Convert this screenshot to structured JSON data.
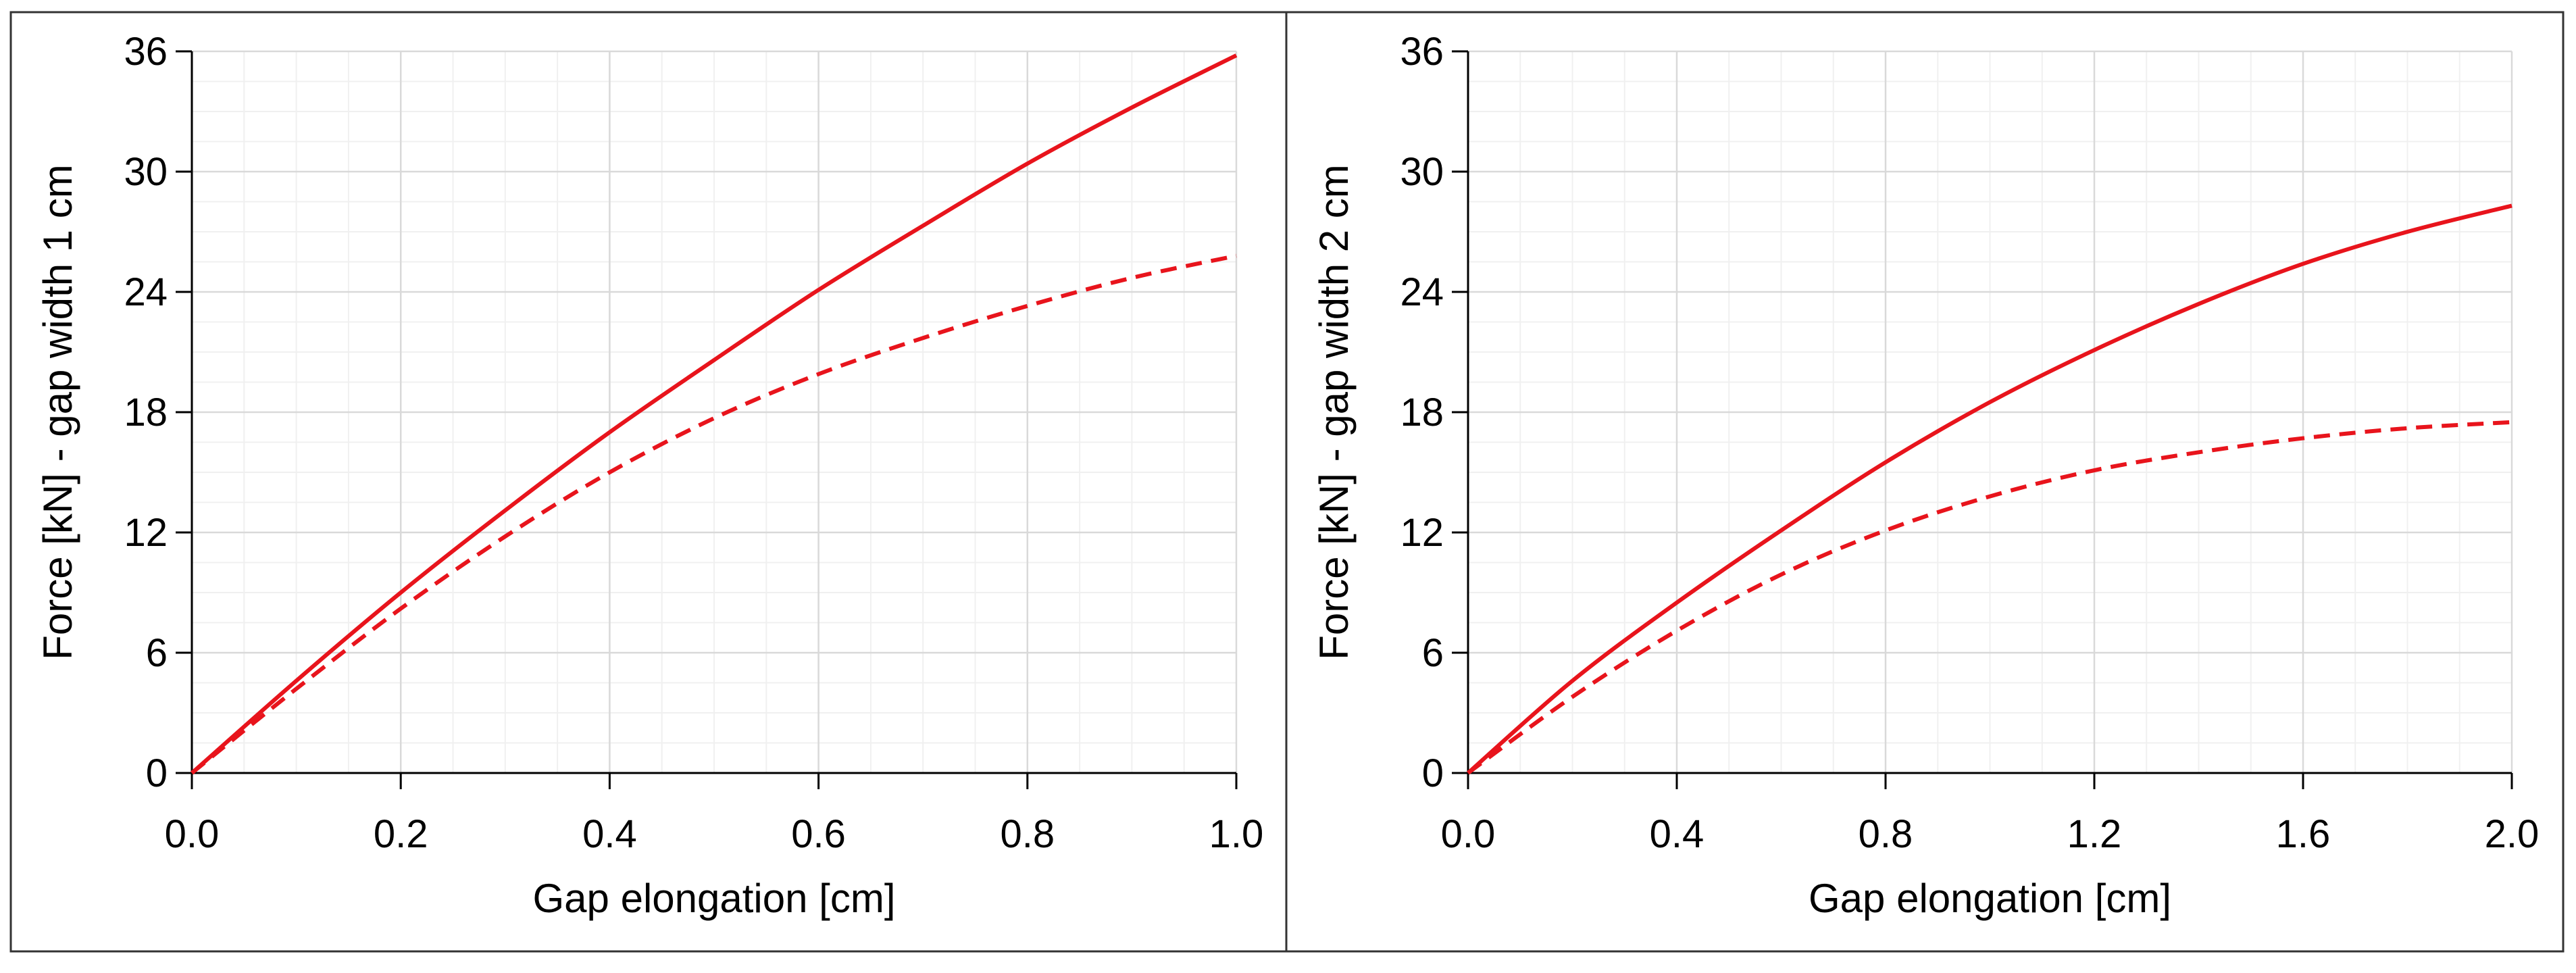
{
  "figure": {
    "panel_count": 2,
    "colors": {
      "series": "#e8141c",
      "major_grid": "#d9d9d9",
      "minor_grid": "#f0f0f0",
      "axis": "#000000",
      "border": "#333333"
    }
  },
  "chart_data": [
    {
      "type": "line",
      "title": "",
      "xlabel": "Gap elongation [cm]",
      "ylabel": "Force [kN] - gap width 1 cm",
      "xlim": [
        0,
        1.0
      ],
      "ylim": [
        0,
        36
      ],
      "xticks": [
        0,
        0.2,
        0.4,
        0.6,
        0.8,
        1.0
      ],
      "xtick_labels": [
        "0.0",
        "0.2",
        "0.4",
        "0.6",
        "0.8",
        "1.0"
      ],
      "yticks": [
        0,
        6,
        12,
        18,
        24,
        30,
        36
      ],
      "ytick_labels": [
        "0",
        "6",
        "12",
        "18",
        "24",
        "30",
        "36"
      ],
      "grid": true,
      "x": [
        0,
        0.1,
        0.2,
        0.3,
        0.4,
        0.5,
        0.6,
        0.7,
        0.8,
        0.9,
        1.0
      ],
      "series": [
        {
          "name": "solid",
          "style": "solid",
          "values": [
            0,
            4.6,
            9.0,
            13.1,
            17.0,
            20.6,
            24.1,
            27.3,
            30.4,
            33.2,
            35.8
          ]
        },
        {
          "name": "dashed",
          "style": "dashed",
          "values": [
            0,
            4.2,
            8.2,
            11.8,
            15.0,
            17.7,
            19.9,
            21.7,
            23.3,
            24.7,
            25.8
          ]
        }
      ]
    },
    {
      "type": "line",
      "title": "",
      "xlabel": "Gap elongation [cm]",
      "ylabel": "Force [kN] - gap width 2 cm",
      "xlim": [
        0,
        2.0
      ],
      "ylim": [
        0,
        36
      ],
      "xticks": [
        0,
        0.4,
        0.8,
        1.2,
        1.6,
        2.0
      ],
      "xtick_labels": [
        "0.0",
        "0.4",
        "0.8",
        "1.2",
        "1.6",
        "2.0"
      ],
      "yticks": [
        0,
        6,
        12,
        18,
        24,
        30,
        36
      ],
      "ytick_labels": [
        "0",
        "6",
        "12",
        "18",
        "24",
        "30",
        "36"
      ],
      "grid": true,
      "x": [
        0,
        0.2,
        0.4,
        0.6,
        0.8,
        1.0,
        1.2,
        1.4,
        1.6,
        1.8,
        2.0
      ],
      "series": [
        {
          "name": "solid",
          "style": "solid",
          "values": [
            0,
            4.6,
            8.5,
            12.1,
            15.5,
            18.5,
            21.1,
            23.4,
            25.4,
            27.0,
            28.3
          ]
        },
        {
          "name": "dashed",
          "style": "dashed",
          "values": [
            0,
            3.8,
            7.1,
            9.9,
            12.1,
            13.8,
            15.1,
            16.0,
            16.7,
            17.2,
            17.5
          ]
        }
      ]
    }
  ]
}
